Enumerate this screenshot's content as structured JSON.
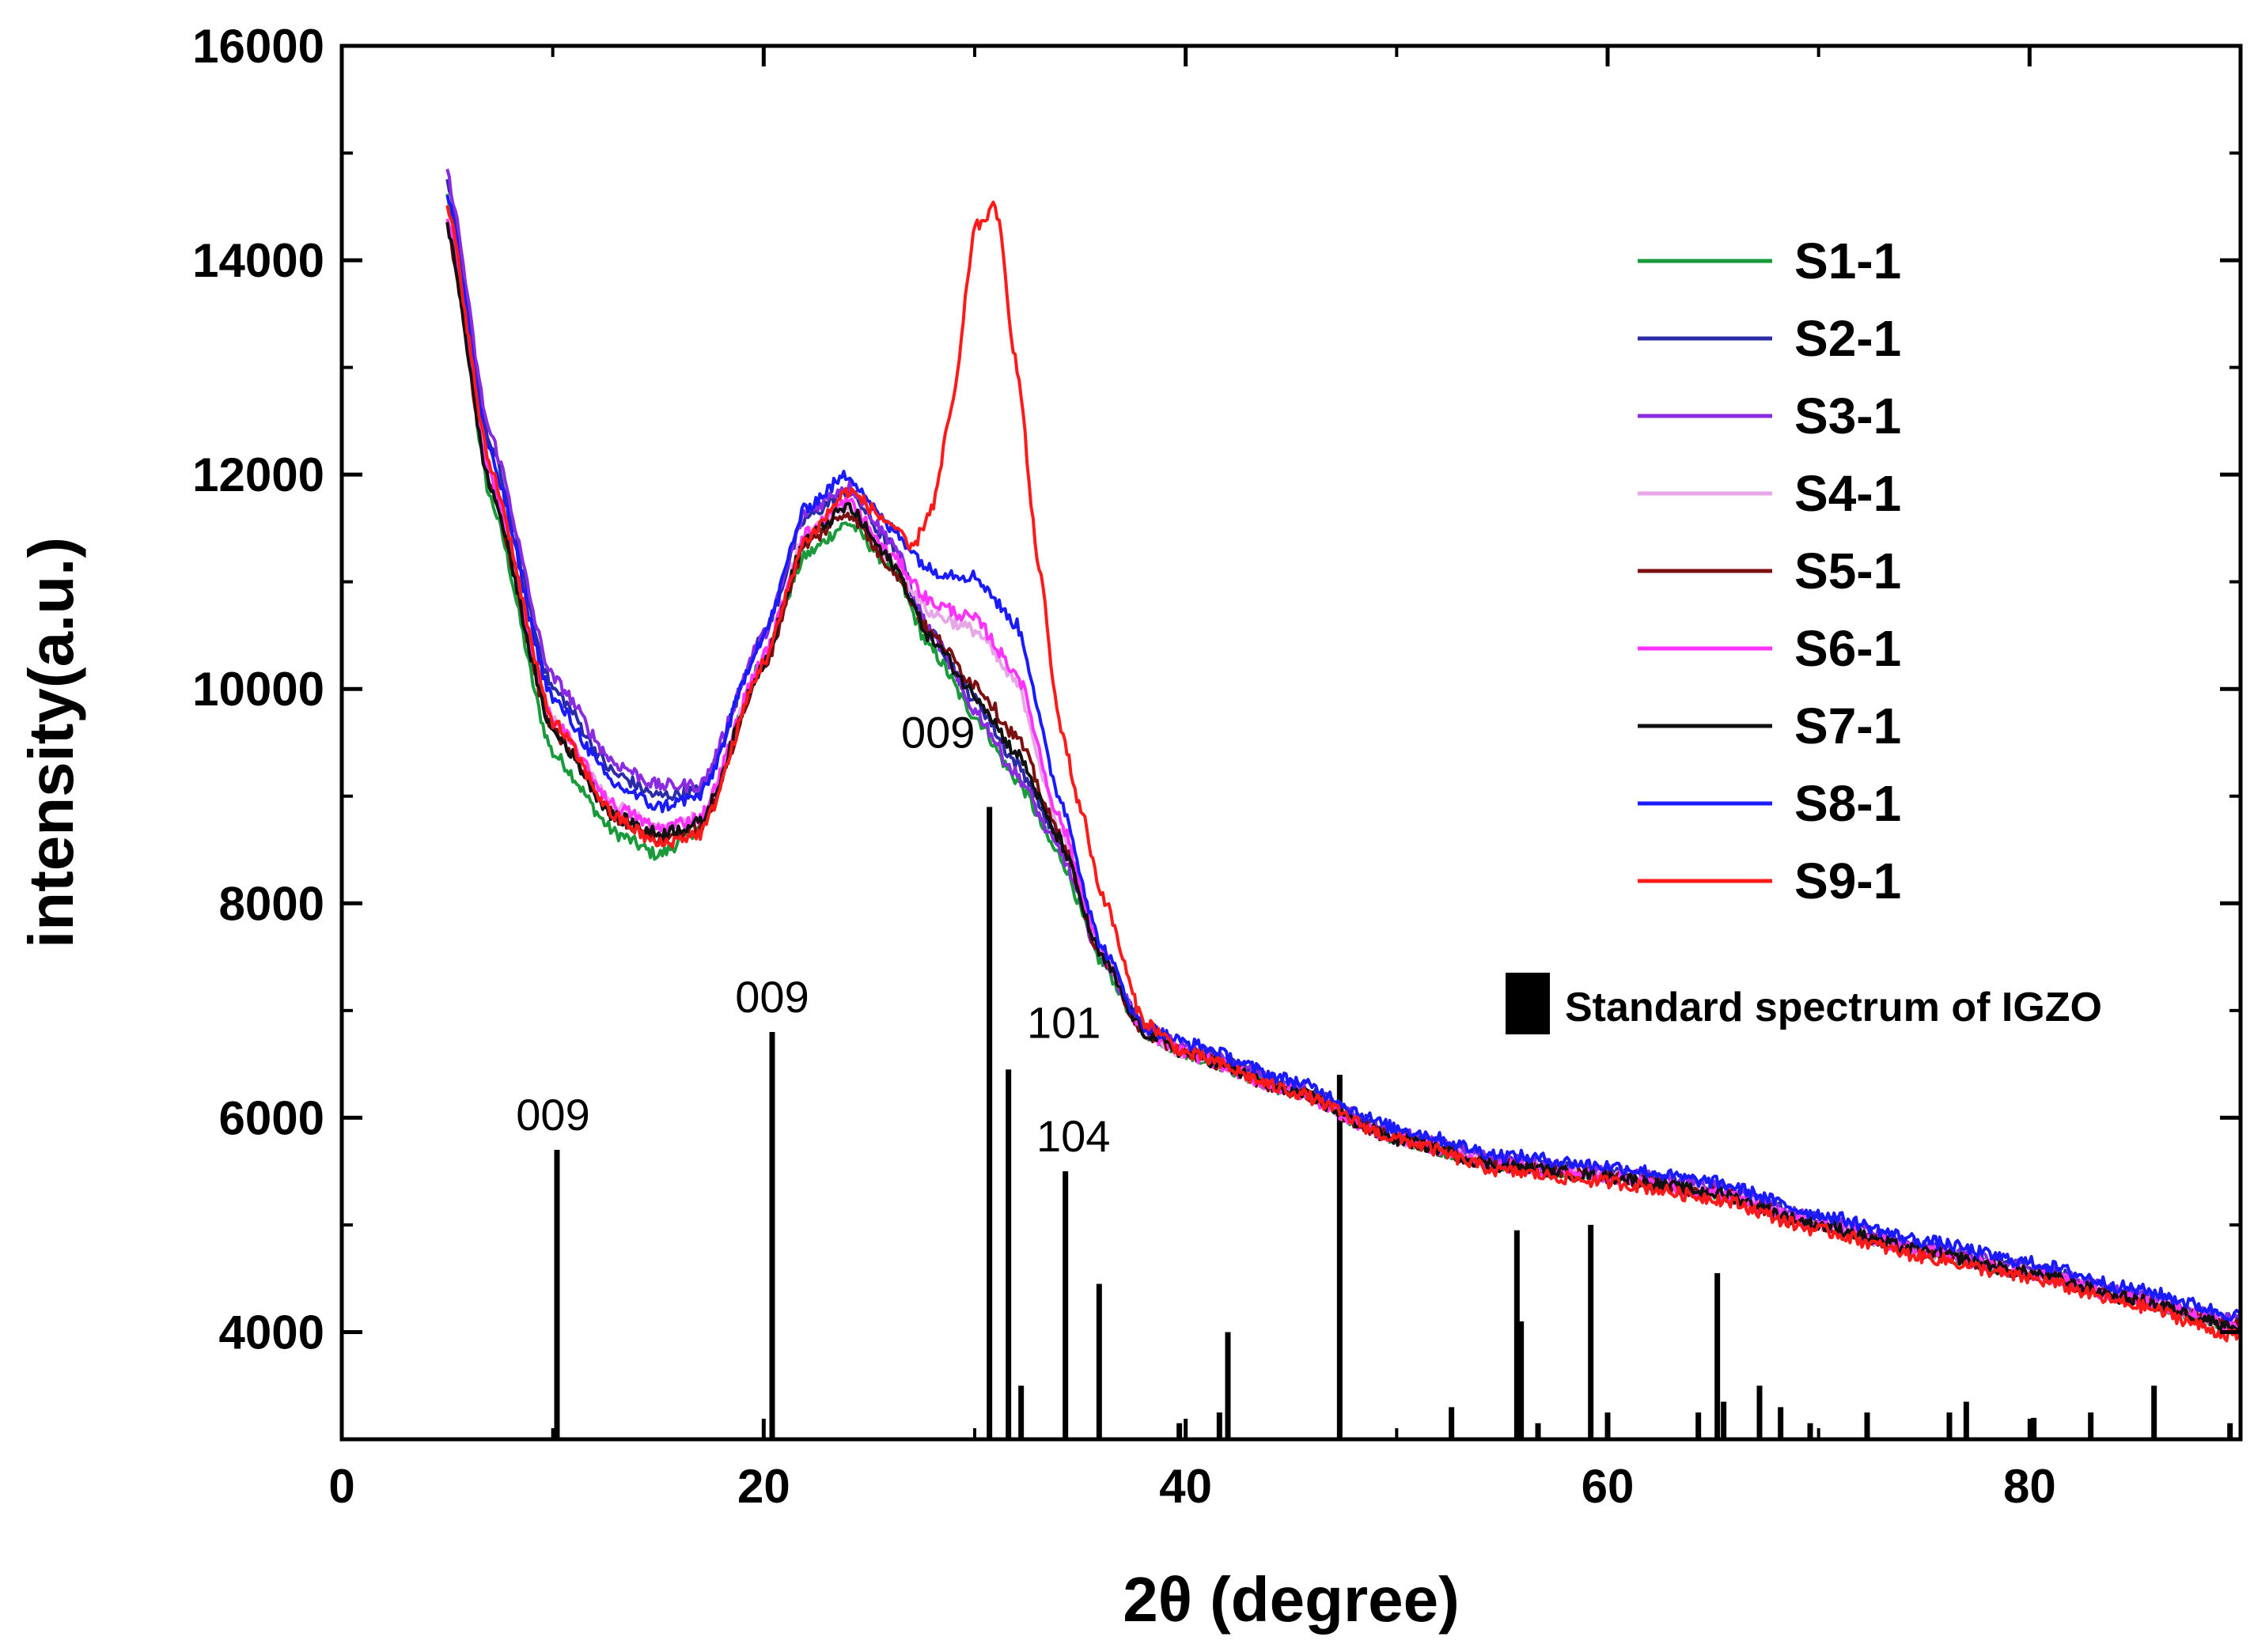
{
  "chart_data": {
    "type": "line",
    "title": "",
    "xlabel": "2θ (degree)",
    "ylabel": "intensity(a.u.)",
    "xlim": [
      0,
      90
    ],
    "ylim": [
      3000,
      16000
    ],
    "xticks": [
      0,
      20,
      40,
      60,
      80
    ],
    "yticks": [
      4000,
      6000,
      8000,
      10000,
      12000,
      14000,
      16000
    ],
    "xtick_labels": [
      "0",
      "20",
      "40",
      "60",
      "80"
    ],
    "ytick_labels": [
      "4000",
      "6000",
      "8000",
      "10000",
      "12000",
      "14000",
      "16000"
    ],
    "grid": false,
    "legend_position": "top-right",
    "series": [
      {
        "name": "S1-1",
        "color": "#1a9a3a",
        "x": [
          5,
          7,
          10,
          13,
          15,
          17,
          20,
          22,
          24,
          26,
          28,
          30,
          32,
          34,
          36,
          38,
          40,
          45,
          50,
          55,
          60,
          65,
          70,
          75,
          80,
          85,
          90
        ],
        "y": [
          14600,
          11800,
          9400,
          8650,
          8450,
          8700,
          10300,
          11250,
          11550,
          11150,
          10350,
          9750,
          9150,
          8450,
          7450,
          6800,
          6600,
          6250,
          5800,
          5550,
          5450,
          5300,
          5000,
          4750,
          4550,
          4300,
          4050
        ]
      },
      {
        "name": "S2-1",
        "color": "#2b2ba8",
        "x": [
          5,
          7,
          10,
          13,
          15,
          17,
          20,
          22,
          24,
          26,
          28,
          30,
          32,
          34,
          36,
          38,
          40,
          45,
          50,
          55,
          60,
          65,
          70,
          75,
          80,
          85,
          90
        ],
        "y": [
          14700,
          12300,
          10000,
          9200,
          9000,
          9050,
          10500,
          11600,
          11850,
          11350,
          10500,
          9900,
          9300,
          8600,
          7550,
          6850,
          6650,
          6300,
          5850,
          5600,
          5500,
          5350,
          5050,
          4800,
          4600,
          4350,
          4100
        ]
      },
      {
        "name": "S3-1",
        "color": "#8a2be2",
        "x": [
          5,
          7,
          10,
          13,
          15,
          17,
          20,
          22,
          24,
          26,
          28,
          30,
          32,
          34,
          36,
          38,
          40,
          45,
          50,
          55,
          60,
          65,
          70,
          75,
          80,
          85,
          90
        ],
        "y": [
          14800,
          12400,
          10100,
          9300,
          9100,
          9100,
          10500,
          11650,
          11900,
          11400,
          10500,
          9800,
          9200,
          8500,
          7500,
          6850,
          6650,
          6300,
          5850,
          5600,
          5500,
          5350,
          5050,
          4800,
          4600,
          4350,
          4100
        ]
      },
      {
        "name": "S4-1",
        "color": "#e7a7e7",
        "x": [
          5,
          7,
          10,
          13,
          15,
          17,
          20,
          22,
          24,
          26,
          28,
          30,
          32,
          34,
          36,
          38,
          40,
          45,
          50,
          55,
          60,
          65,
          70,
          75,
          80,
          85,
          90
        ],
        "y": [
          14400,
          12000,
          9700,
          8900,
          8700,
          8800,
          10300,
          11450,
          11700,
          11200,
          10700,
          10550,
          10050,
          8700,
          7550,
          6800,
          6600,
          6250,
          5800,
          5550,
          5450,
          5300,
          5000,
          4750,
          4550,
          4300,
          4050
        ]
      },
      {
        "name": "S5-1",
        "color": "#7a1010",
        "x": [
          5,
          7,
          10,
          13,
          15,
          17,
          20,
          22,
          24,
          26,
          28,
          30,
          32,
          34,
          36,
          38,
          40,
          45,
          50,
          55,
          60,
          65,
          70,
          75,
          80,
          85,
          90
        ],
        "y": [
          14300,
          11900,
          9600,
          8800,
          8600,
          8700,
          10200,
          11350,
          11650,
          11150,
          10500,
          10050,
          9550,
          8650,
          7500,
          6800,
          6600,
          6250,
          5800,
          5550,
          5450,
          5300,
          5000,
          4750,
          4550,
          4300,
          4050
        ]
      },
      {
        "name": "S6-1",
        "color": "#ff33ff",
        "x": [
          5,
          7,
          10,
          13,
          15,
          17,
          20,
          22,
          24,
          26,
          28,
          30,
          32,
          34,
          36,
          38,
          40,
          45,
          50,
          55,
          60,
          65,
          70,
          75,
          80,
          85,
          90
        ],
        "y": [
          14400,
          12000,
          9700,
          8900,
          8700,
          8800,
          10300,
          11450,
          11750,
          11250,
          10800,
          10650,
          10150,
          8800,
          7550,
          6800,
          6600,
          6250,
          5800,
          5550,
          5450,
          5300,
          5000,
          4750,
          4550,
          4300,
          4050
        ]
      },
      {
        "name": "S7-1",
        "color": "#111111",
        "x": [
          5,
          7,
          10,
          13,
          15,
          17,
          20,
          22,
          24,
          26,
          28,
          30,
          32,
          34,
          36,
          38,
          40,
          45,
          50,
          55,
          60,
          65,
          70,
          75,
          80,
          85,
          90
        ],
        "y": [
          14300,
          11900,
          9600,
          8800,
          8650,
          8750,
          10250,
          11400,
          11700,
          11200,
          10450,
          9950,
          9400,
          8600,
          7500,
          6800,
          6600,
          6250,
          5800,
          5550,
          5450,
          5300,
          5000,
          4750,
          4550,
          4300,
          4050
        ]
      },
      {
        "name": "S8-1",
        "color": "#1a1aff",
        "x": [
          5,
          7,
          10,
          13,
          15,
          17,
          20,
          22,
          24,
          26,
          28,
          30,
          32,
          34,
          36,
          38,
          40,
          45,
          50,
          55,
          60,
          65,
          70,
          75,
          80,
          85,
          90
        ],
        "y": [
          14600,
          12200,
          9900,
          9100,
          8900,
          9000,
          10500,
          11700,
          12000,
          11500,
          11100,
          11050,
          10600,
          9000,
          7600,
          6850,
          6700,
          6350,
          5900,
          5650,
          5550,
          5400,
          5100,
          4850,
          4650,
          4400,
          4150
        ]
      },
      {
        "name": "S9-1",
        "color": "#ff1a1a",
        "x": [
          5,
          7,
          10,
          13,
          15,
          17,
          20,
          22,
          24,
          26,
          27,
          28,
          29,
          30,
          31,
          32,
          33,
          34,
          35,
          36,
          38,
          40,
          45,
          50,
          55,
          60,
          65,
          70,
          75,
          80,
          85,
          90
        ],
        "y": [
          14500,
          12100,
          9700,
          8800,
          8550,
          8650,
          10250,
          11400,
          11850,
          11550,
          11300,
          11700,
          12700,
          14300,
          14500,
          13000,
          11200,
          9700,
          8900,
          8100,
          6900,
          6600,
          6250,
          5800,
          5500,
          5400,
          5250,
          4950,
          4700,
          4500,
          4250,
          3950
        ]
      }
    ],
    "reference_pattern": {
      "name": "Standard spectrum of IGZO",
      "color": "#000000",
      "x": [
        10.2,
        20.4,
        30.7,
        31.6,
        32.2,
        34.3,
        35.9,
        39.7,
        41.6,
        42.0,
        47.3,
        52.6,
        55.7,
        55.9,
        56.7,
        59.2,
        60.0,
        64.3,
        65.2,
        65.5,
        67.2,
        68.2,
        69.6,
        72.3,
        76.2,
        77.0,
        80.2,
        82.9,
        85.9,
        89.5
      ],
      "y": [
        5700,
        6800,
        8900,
        6450,
        3500,
        5500,
        4450,
        3150,
        3250,
        4000,
        6400,
        3300,
        4950,
        4100,
        3150,
        5000,
        3250,
        3250,
        4550,
        3350,
        3500,
        3300,
        3150,
        3250,
        3250,
        3350,
        3200,
        3250,
        3500,
        3150
      ]
    },
    "annotations": [
      {
        "text": "009",
        "x": 10.2,
        "y": 5700
      },
      {
        "text": "009",
        "x": 20.4,
        "y": 6800
      },
      {
        "text": "009",
        "x": 30.7,
        "y": 8900
      },
      {
        "text": "101",
        "x": 31.6,
        "y": 6450
      },
      {
        "text": "104",
        "x": 34.3,
        "y": 5500
      }
    ]
  }
}
